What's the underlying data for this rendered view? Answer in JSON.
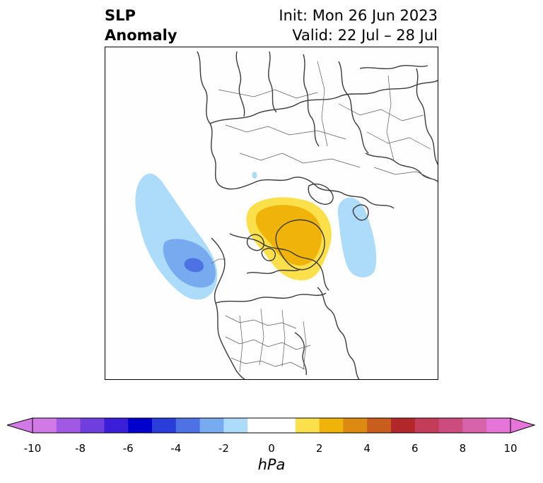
{
  "title": {
    "line1": "SLP",
    "line2": "Anomaly"
  },
  "init": "Init: Mon 26 Jun 2023",
  "valid": "Valid: 22 Jul – 28 Jul",
  "colorbar": {
    "unit": "hPa",
    "ticks": [
      "-10",
      "-8",
      "-6",
      "-4",
      "-2",
      "0",
      "2",
      "4",
      "6",
      "8",
      "10"
    ],
    "colors": [
      "#d17ae6",
      "#a159e3",
      "#6e3fdc",
      "#3b1ed8",
      "#0000cd",
      "#2a3dd9",
      "#4e72e4",
      "#77aaee",
      "#acdcfa",
      "#ffffff",
      "#ffffff",
      "#fbe04c",
      "#f0b30a",
      "#dd8a12",
      "#c85e1e",
      "#b2282a",
      "#c33c5a",
      "#cc4d7d",
      "#d763ab",
      "#e774d8"
    ],
    "min_color": "#d17ae6",
    "max_color": "#e774d8"
  },
  "anomalies": [
    {
      "name": "pacific-low",
      "level": -6,
      "colors": [
        "#acdcfa",
        "#77aaee",
        "#4e72e4"
      ]
    },
    {
      "name": "greenland-high",
      "level": 4,
      "colors": [
        "#fbe04c",
        "#f0b30a"
      ]
    },
    {
      "name": "scandinavia-low",
      "level": -2,
      "colors": [
        "#acdcfa"
      ]
    }
  ]
}
